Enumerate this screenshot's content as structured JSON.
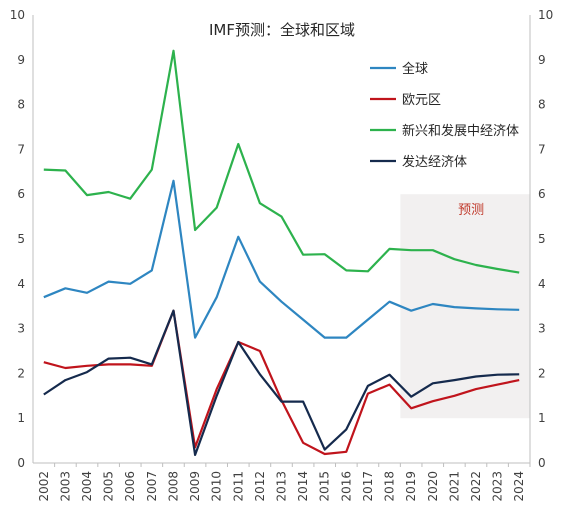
{
  "chart_data": {
    "type": "line",
    "title": "IMF预测：全球和区域",
    "x": [
      "2002",
      "2003",
      "2004",
      "2005",
      "2006",
      "2007",
      "2008",
      "2009",
      "2010",
      "2011",
      "2012",
      "2013",
      "2014",
      "2015",
      "2016",
      "2017",
      "2018",
      "2019",
      "2020",
      "2021",
      "2022",
      "2023",
      "2024"
    ],
    "ylim": [
      0,
      10
    ],
    "yticks": [
      0,
      1,
      2,
      3,
      4,
      5,
      6,
      7,
      8,
      9,
      10
    ],
    "grid": false,
    "legend_position": "top-right",
    "forecast": {
      "label": "预测",
      "start": "2019",
      "end": "2024",
      "color": "#f2f0f0"
    },
    "series": [
      {
        "name": "全球",
        "color": "#2e86c1",
        "values": [
          3.7,
          3.9,
          3.8,
          4.05,
          4.0,
          4.3,
          6.3,
          2.8,
          3.7,
          5.05,
          4.05,
          3.6,
          3.2,
          2.8,
          2.8,
          3.2,
          3.6,
          3.4,
          3.55,
          3.48,
          3.45,
          3.43,
          3.42
        ]
      },
      {
        "name": "欧元区",
        "color": "#c0141c",
        "values": [
          2.25,
          2.12,
          2.17,
          2.2,
          2.2,
          2.17,
          3.4,
          0.35,
          1.65,
          2.7,
          2.5,
          1.4,
          0.45,
          0.2,
          0.25,
          1.55,
          1.75,
          1.22,
          1.38,
          1.5,
          1.65,
          1.75,
          1.85
        ]
      },
      {
        "name": "新兴和发展中经济体",
        "color": "#2db24d",
        "values": [
          6.55,
          6.53,
          5.98,
          6.05,
          5.9,
          6.55,
          9.2,
          5.2,
          5.7,
          7.12,
          5.8,
          5.5,
          4.65,
          4.66,
          4.3,
          4.28,
          4.78,
          4.75,
          4.75,
          4.55,
          4.42,
          4.33,
          4.25
        ]
      },
      {
        "name": "发达经济体",
        "color": "#152a4d",
        "values": [
          1.53,
          1.85,
          2.03,
          2.33,
          2.35,
          2.2,
          3.4,
          0.18,
          1.5,
          2.7,
          1.98,
          1.37,
          1.37,
          0.3,
          0.75,
          1.72,
          1.97,
          1.48,
          1.78,
          1.85,
          1.93,
          1.97,
          1.98
        ]
      }
    ]
  }
}
